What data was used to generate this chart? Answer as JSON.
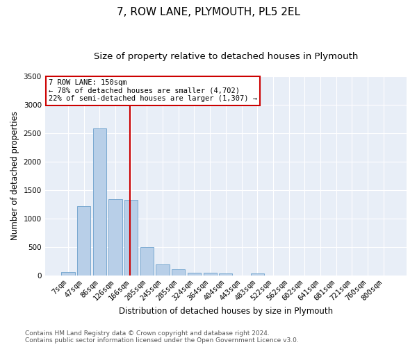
{
  "title": "7, ROW LANE, PLYMOUTH, PL5 2EL",
  "subtitle": "Size of property relative to detached houses in Plymouth",
  "xlabel": "Distribution of detached houses by size in Plymouth",
  "ylabel": "Number of detached properties",
  "categories": [
    "7sqm",
    "47sqm",
    "86sqm",
    "126sqm",
    "166sqm",
    "205sqm",
    "245sqm",
    "285sqm",
    "324sqm",
    "364sqm",
    "404sqm",
    "443sqm",
    "483sqm",
    "522sqm",
    "562sqm",
    "602sqm",
    "641sqm",
    "681sqm",
    "721sqm",
    "760sqm",
    "800sqm"
  ],
  "values": [
    55,
    1220,
    2580,
    1340,
    1330,
    490,
    190,
    100,
    50,
    50,
    35,
    0,
    35,
    0,
    0,
    0,
    0,
    0,
    0,
    0,
    0
  ],
  "bar_color": "#b8cfe8",
  "bar_edge_color": "#6ca0cc",
  "vline_color": "#cc0000",
  "vline_pos": 3.93,
  "annotation_text": "7 ROW LANE: 150sqm\n← 78% of detached houses are smaller (4,702)\n22% of semi-detached houses are larger (1,307) →",
  "annotation_box_color": "#cc0000",
  "ylim": [
    0,
    3500
  ],
  "yticks": [
    0,
    500,
    1000,
    1500,
    2000,
    2500,
    3000,
    3500
  ],
  "bg_color": "#e8eef7",
  "footer_line1": "Contains HM Land Registry data © Crown copyright and database right 2024.",
  "footer_line2": "Contains public sector information licensed under the Open Government Licence v3.0.",
  "title_fontsize": 11,
  "subtitle_fontsize": 9.5,
  "ylabel_fontsize": 8.5,
  "xlabel_fontsize": 8.5,
  "tick_fontsize": 7.5,
  "annotation_fontsize": 7.5,
  "footer_fontsize": 6.5
}
